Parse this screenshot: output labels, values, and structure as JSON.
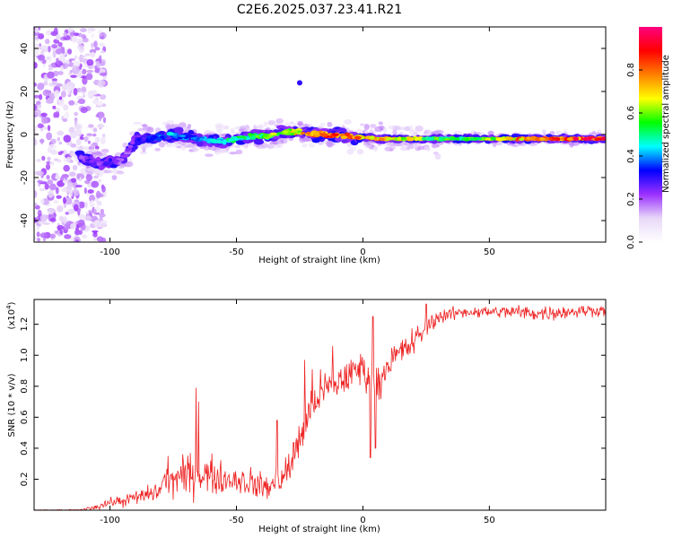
{
  "title": "C2E6.2025.037.23.41.R21",
  "chart_data": [
    {
      "type": "heatmap",
      "name": "spectrogram",
      "xlabel": "Height of straight line (km)",
      "ylabel": "Frequency (Hz)",
      "xlim": [
        -130,
        96
      ],
      "ylim": [
        -50,
        50
      ],
      "xticks": [
        -100,
        -50,
        0,
        50
      ],
      "yticks": [
        -40,
        -20,
        0,
        20,
        40
      ],
      "ridge": {
        "x": [
          -112,
          -108,
          -104,
          -100,
          -95,
          -90,
          -85,
          -80,
          -75,
          -70,
          -65,
          -60,
          -55,
          -50,
          -45,
          -40,
          -35,
          -30,
          -25,
          -20,
          -15,
          -10,
          -5,
          0,
          5,
          10,
          20,
          30,
          40,
          50,
          60,
          70,
          80,
          90,
          96
        ],
        "freq": [
          -10,
          -12,
          -14,
          -13,
          -12,
          -2,
          -2,
          -1,
          0,
          -1,
          -2,
          -3,
          -3,
          -2,
          -1,
          -1,
          0,
          1,
          1,
          0,
          0,
          0,
          -1,
          -1,
          -2,
          -2,
          -2,
          -2,
          -2,
          -2,
          -2,
          -2,
          -2,
          -2,
          -2
        ],
        "amplitude": [
          0.2,
          0.3,
          0.25,
          0.3,
          0.2,
          0.3,
          0.35,
          0.4,
          0.45,
          0.4,
          0.45,
          0.45,
          0.5,
          0.55,
          0.55,
          0.6,
          0.65,
          0.7,
          0.75,
          0.85,
          0.9,
          0.9,
          0.85,
          0.8,
          0.8,
          0.85,
          0.7,
          0.6,
          0.6,
          0.7,
          0.8,
          0.85,
          0.9,
          0.95,
          0.9
        ]
      },
      "outliers": [
        {
          "x": -25,
          "freq": 24,
          "amplitude": 0.15
        }
      ],
      "noise_region_x": [
        -130,
        -102
      ],
      "colorbar": {
        "label": "Normalized spectral amplitude",
        "range": [
          0,
          1
        ],
        "ticks": [
          "0.0",
          "0.2",
          "0.4",
          "0.6",
          "0.8"
        ],
        "tick_values": [
          0,
          0.2,
          0.4,
          0.6,
          0.8
        ],
        "colors": [
          "#ffffff",
          "#e8d8f8",
          "#9b30ff",
          "#0000ff",
          "#00ffff",
          "#00ff00",
          "#ffff00",
          "#ff8000",
          "#ff0000",
          "#ff0080"
        ]
      }
    },
    {
      "type": "line",
      "name": "snr",
      "xlabel": "Height of straight line (km)",
      "ylabel": "SNR (10 * v/v)",
      "scale_label": "(x10",
      "scale_exp": "4",
      "scale_close": ")",
      "xlim": [
        -130,
        96
      ],
      "ylim": [
        0,
        1.36
      ],
      "xticks": [
        -100,
        -50,
        0,
        50
      ],
      "yticks": [
        0.2,
        0.4,
        0.6,
        0.8,
        1.0,
        1.2
      ],
      "ytick_labels": [
        "0.2",
        "0.4",
        "0.6",
        "0.8",
        "1.0",
        "1.2"
      ],
      "color": "#ee2222",
      "envelope": {
        "x": [
          -130,
          -112,
          -106,
          -100,
          -95,
          -90,
          -85,
          -80,
          -78,
          -75,
          -70,
          -65,
          -60,
          -55,
          -50,
          -45,
          -40,
          -35,
          -30,
          -27,
          -25,
          -22,
          -20,
          -15,
          -10,
          -5,
          0,
          5,
          10,
          15,
          20,
          25,
          30,
          40,
          50,
          60,
          70,
          80,
          90,
          96
        ],
        "mean": [
          0.0,
          0.0,
          0.02,
          0.05,
          0.06,
          0.08,
          0.1,
          0.13,
          0.22,
          0.2,
          0.22,
          0.25,
          0.22,
          0.2,
          0.2,
          0.18,
          0.15,
          0.16,
          0.25,
          0.35,
          0.48,
          0.6,
          0.7,
          0.78,
          0.82,
          0.88,
          0.92,
          0.78,
          0.95,
          1.02,
          1.08,
          1.18,
          1.25,
          1.28,
          1.28,
          1.28,
          1.27,
          1.28,
          1.29,
          1.29
        ],
        "spread": [
          0.004,
          0.006,
          0.02,
          0.03,
          0.04,
          0.05,
          0.06,
          0.08,
          0.12,
          0.12,
          0.14,
          0.16,
          0.13,
          0.1,
          0.1,
          0.1,
          0.1,
          0.1,
          0.12,
          0.14,
          0.2,
          0.18,
          0.14,
          0.14,
          0.12,
          0.12,
          0.14,
          0.12,
          0.1,
          0.1,
          0.1,
          0.07,
          0.05,
          0.04,
          0.04,
          0.05,
          0.05,
          0.05,
          0.04,
          0.04
        ]
      },
      "spikes": [
        {
          "x": -66,
          "y": 0.79
        },
        {
          "x": -65,
          "y": 0.7
        },
        {
          "x": -34,
          "y": 0.58
        },
        {
          "x": -23,
          "y": 0.97
        },
        {
          "x": -20,
          "y": 0.91
        },
        {
          "x": -12,
          "y": 1.06
        },
        {
          "x": 4,
          "y": 1.25
        },
        {
          "x": 3,
          "y": 0.34
        },
        {
          "x": 5,
          "y": 0.4
        },
        {
          "x": 25,
          "y": 1.33
        }
      ]
    }
  ]
}
